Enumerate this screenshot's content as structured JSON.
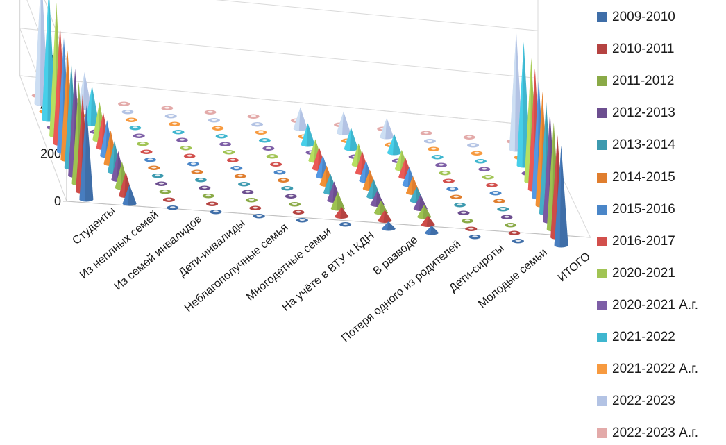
{
  "chart_data": {
    "type": "bar",
    "subtype": "3d-cone",
    "title": "",
    "ylim": [
      0,
      600
    ],
    "yticks": [
      0,
      200,
      400,
      600
    ],
    "grid": true,
    "legend_position": "right",
    "categories": [
      "Студенты",
      "Из неплных семей",
      "Из семей инвалидов",
      "Дети-инвалиды",
      "Неблагополучные семья",
      "Многодетные семьи",
      "На учёте в ВТУ и КДН",
      "В разводе",
      "Потеря одного из родителей",
      "Дети-сироты",
      "Молодые семьи",
      "ИТОГО"
    ],
    "series": [
      {
        "name": "2009-2010",
        "color": "#3f6ea8",
        "values": [
          400,
          80,
          2,
          2,
          2,
          2,
          2,
          30,
          30,
          2,
          2,
          420
        ]
      },
      {
        "name": "2010-2011",
        "color": "#b54341",
        "values": [
          410,
          100,
          2,
          2,
          2,
          2,
          40,
          45,
          40,
          2,
          2,
          430
        ]
      },
      {
        "name": "2011-2012",
        "color": "#8aaa47",
        "values": [
          430,
          110,
          2,
          2,
          2,
          2,
          70,
          50,
          50,
          2,
          2,
          450
        ]
      },
      {
        "name": "2012-2013",
        "color": "#6c4e8f",
        "values": [
          450,
          120,
          2,
          2,
          2,
          2,
          80,
          60,
          60,
          2,
          2,
          460
        ]
      },
      {
        "name": "2013-2014",
        "color": "#3d9aaf",
        "values": [
          440,
          130,
          2,
          2,
          2,
          2,
          80,
          75,
          60,
          2,
          2,
          470
        ]
      },
      {
        "name": "2014-2015",
        "color": "#e07e2e",
        "values": [
          460,
          140,
          2,
          2,
          2,
          2,
          80,
          80,
          70,
          2,
          2,
          480
        ]
      },
      {
        "name": "2015-2016",
        "color": "#4a86c8",
        "values": [
          480,
          150,
          2,
          2,
          2,
          2,
          90,
          85,
          75,
          2,
          2,
          500
        ]
      },
      {
        "name": "2016-2017",
        "color": "#d24f4c",
        "values": [
          500,
          150,
          2,
          2,
          2,
          2,
          90,
          90,
          80,
          2,
          2,
          510
        ]
      },
      {
        "name": "2020-2021",
        "color": "#a1c454",
        "values": [
          560,
          160,
          2,
          2,
          2,
          2,
          90,
          90,
          80,
          2,
          2,
          520
        ]
      },
      {
        "name": "2020-2021 А.г.",
        "color": "#7d5ea6",
        "values": [
          2,
          2,
          2,
          2,
          2,
          2,
          2,
          2,
          2,
          2,
          2,
          2
        ]
      },
      {
        "name": "2021-2022",
        "color": "#3fb6cf",
        "values": [
          560,
          160,
          2,
          2,
          2,
          2,
          90,
          90,
          80,
          2,
          2,
          520
        ]
      },
      {
        "name": "2021-2022 А.г.",
        "color": "#f79a3f",
        "values": [
          2,
          2,
          2,
          2,
          2,
          2,
          2,
          2,
          2,
          2,
          2,
          2
        ]
      },
      {
        "name": "2022-2023",
        "color": "#b3c3e4",
        "values": [
          560,
          150,
          2,
          2,
          2,
          2,
          90,
          90,
          80,
          2,
          2,
          500
        ]
      },
      {
        "name": "2022-2023 А.г.",
        "color": "#e3aaa9",
        "values": [
          2,
          2,
          2,
          2,
          2,
          2,
          2,
          2,
          2,
          2,
          2,
          2
        ]
      }
    ]
  }
}
